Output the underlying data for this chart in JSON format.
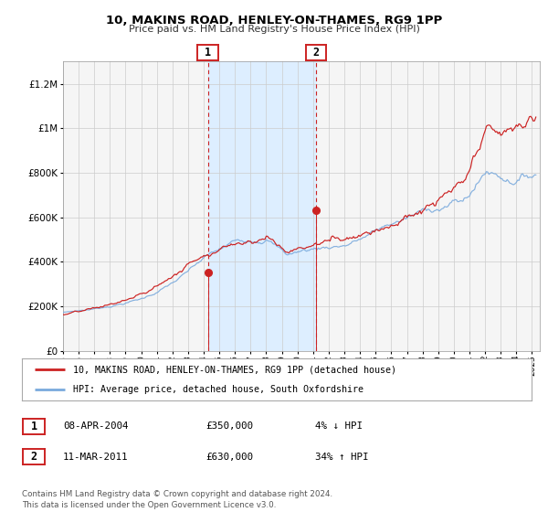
{
  "title": "10, MAKINS ROAD, HENLEY-ON-THAMES, RG9 1PP",
  "subtitle": "Price paid vs. HM Land Registry's House Price Index (HPI)",
  "ylim": [
    0,
    1300000
  ],
  "xlim_start": 1995.0,
  "xlim_end": 2025.5,
  "yticks": [
    0,
    200000,
    400000,
    600000,
    800000,
    1000000,
    1200000
  ],
  "ytick_labels": [
    "£0",
    "£200K",
    "£400K",
    "£600K",
    "£800K",
    "£1M",
    "£1.2M"
  ],
  "xticks": [
    1995,
    1996,
    1997,
    1998,
    1999,
    2000,
    2001,
    2002,
    2003,
    2004,
    2005,
    2006,
    2007,
    2008,
    2009,
    2010,
    2011,
    2012,
    2013,
    2014,
    2015,
    2016,
    2017,
    2018,
    2019,
    2020,
    2021,
    2022,
    2023,
    2024,
    2025
  ],
  "bg_color": "#f5f5f5",
  "grid_color": "#cccccc",
  "hpi_color": "#7aaadd",
  "price_color": "#cc2222",
  "shade_color": "#ddeeff",
  "marker1_x": 2004.27,
  "marker1_y": 350000,
  "marker2_x": 2011.19,
  "marker2_y": 630000,
  "vline1_x": 2004.27,
  "vline2_x": 2011.19,
  "legend_price_label": "10, MAKINS ROAD, HENLEY-ON-THAMES, RG9 1PP (detached house)",
  "legend_hpi_label": "HPI: Average price, detached house, South Oxfordshire",
  "table_row1": [
    "1",
    "08-APR-2004",
    "£350,000",
    "4% ↓ HPI"
  ],
  "table_row2": [
    "2",
    "11-MAR-2011",
    "£630,000",
    "34% ↑ HPI"
  ],
  "footer": "Contains HM Land Registry data © Crown copyright and database right 2024.\nThis data is licensed under the Open Government Licence v3.0."
}
